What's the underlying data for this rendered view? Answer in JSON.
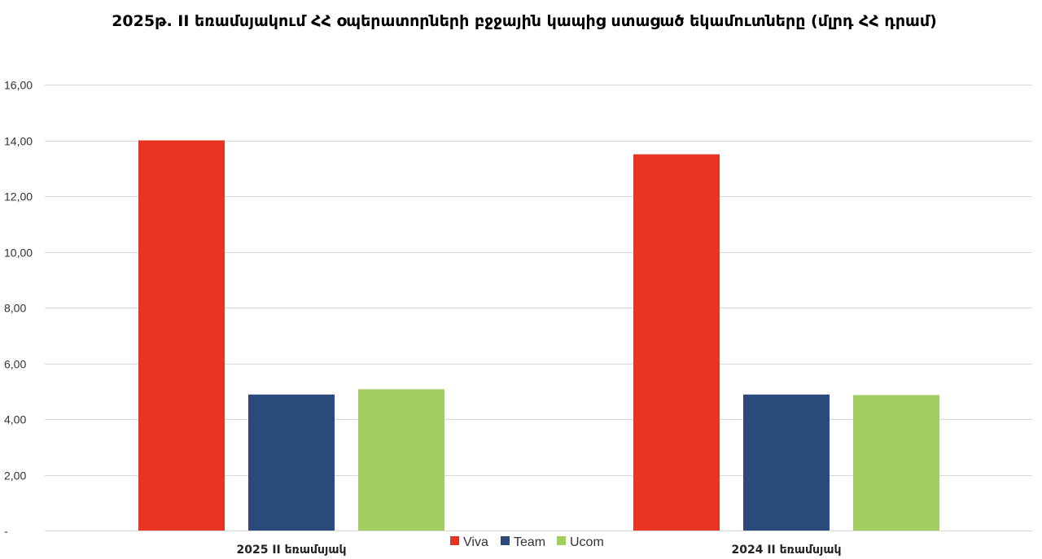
{
  "chart_data": {
    "type": "bar",
    "title": "2025թ. II եռամսյակում ՀՀ օպերատորների բջջային կապից ստացած եկամուտները (մլրդ ՀՀ դրամ)",
    "xlabel": "",
    "ylabel": "",
    "categories": [
      "2025 II եռամսյակ",
      "2024 II եռամսյակ"
    ],
    "series": [
      {
        "name": "Viva",
        "color": "#e93323",
        "values": [
          14.0,
          13.5
        ]
      },
      {
        "name": "Team",
        "color": "#2b4a7c",
        "values": [
          4.88,
          4.88
        ]
      },
      {
        "name": "Ucom",
        "color": "#a2cd63",
        "values": [
          5.07,
          4.86
        ]
      }
    ],
    "ylim": [
      0,
      16
    ],
    "yticks": [
      0,
      2,
      4,
      6,
      8,
      10,
      12,
      14,
      16
    ],
    "ytick_labels": [
      "-",
      "2,00",
      "4,00",
      "6,00",
      "8,00",
      "10,00",
      "12,00",
      "14,00",
      "16,00"
    ],
    "grid": true,
    "legend_position": "bottom"
  }
}
